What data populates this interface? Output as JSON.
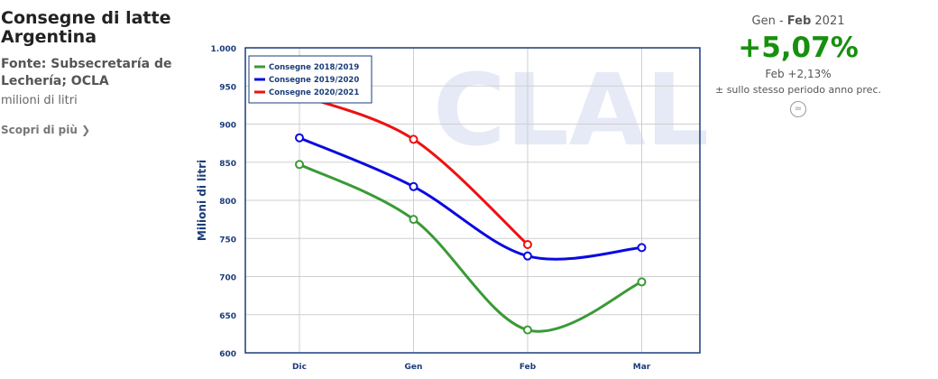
{
  "header": {
    "title": "Consegne di latte Argentina",
    "source": "Fonte: Subsecretaría de Lechería; OCLA",
    "unit": "milioni di litri",
    "link": "Scopri di più"
  },
  "summary": {
    "period_from": "Gen -",
    "period_to": "Feb",
    "period_year": "2021",
    "change": "+5,07%",
    "month_change": "Feb +2,13%",
    "note": "± sullo stesso periodo anno prec."
  },
  "chart_data": {
    "type": "line",
    "ylabel": "Milioni di litri",
    "watermark": "CLAL",
    "categories": [
      "Dic",
      "Gen",
      "Feb",
      "Mar"
    ],
    "series": [
      {
        "name": "Consegne 2018/2019",
        "color": "#3a9a36",
        "values": [
          847,
          775,
          630,
          693
        ]
      },
      {
        "name": "Consegne 2019/2020",
        "color": "#0a0ae0",
        "values": [
          882,
          818,
          727,
          738
        ]
      },
      {
        "name": "Consegne 2020/2021",
        "color": "#ee1111",
        "values": [
          938,
          880,
          742,
          null
        ]
      }
    ],
    "ylim": [
      600,
      1000
    ],
    "yticks": [
      600,
      650,
      700,
      750,
      800,
      850,
      900,
      950,
      {
        "value": 1000,
        "label": "1.000"
      }
    ],
    "grid": true,
    "legend": "top-left"
  }
}
